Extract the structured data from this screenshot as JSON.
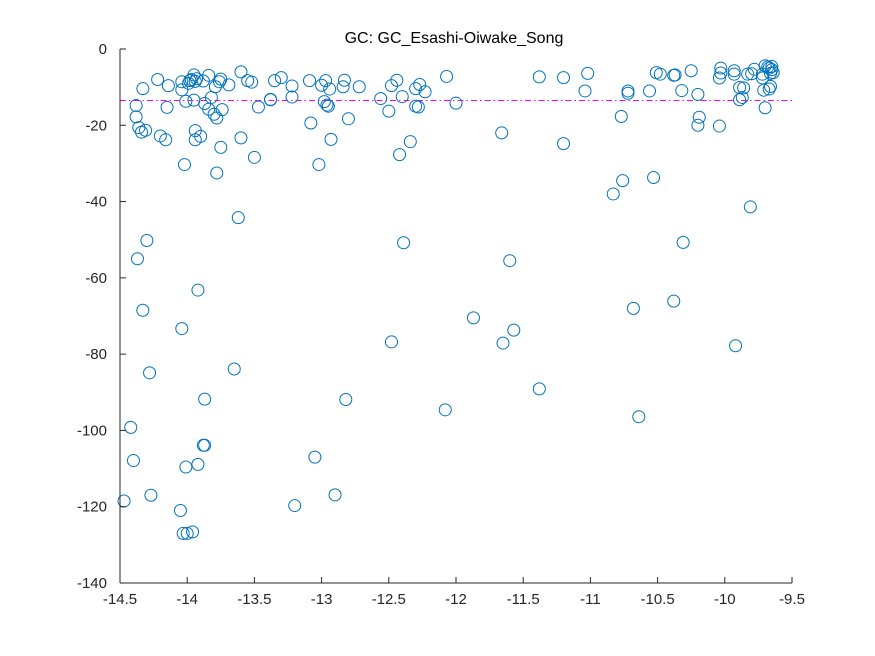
{
  "chart_data": {
    "type": "scatter",
    "title": "GC: GC_Esashi-Oiwake_Song",
    "xlabel": "",
    "ylabel": "",
    "xlim": [
      -14.5,
      -9.5
    ],
    "ylim": [
      -140,
      0
    ],
    "x_ticks": [
      -14.5,
      -14,
      -13.5,
      -13,
      -12.5,
      -12,
      -11.5,
      -11,
      -10.5,
      -10,
      -9.5
    ],
    "x_tick_labels": [
      "-14.5",
      "-14",
      "-13.5",
      "-13",
      "-12.5",
      "-12",
      "-11.5",
      "-11",
      "-10.5",
      "-10",
      "-9.5"
    ],
    "y_ticks": [
      0,
      -20,
      -40,
      -60,
      -80,
      -100,
      -120,
      -140
    ],
    "y_tick_labels": [
      "0",
      "-20",
      "-40",
      "-60",
      "-80",
      "-100",
      "-120",
      "-140"
    ],
    "grid": false,
    "marker_color": "#0072BD",
    "reference_line": {
      "y": -13.5,
      "color": "#FF00FF",
      "style": "dash-dot"
    },
    "series": [
      {
        "points": [
          [
            -14.47,
            -118.5
          ],
          [
            -14.42,
            -99.2
          ],
          [
            -14.4,
            -107.9
          ],
          [
            -14.38,
            -14.8
          ],
          [
            -14.38,
            -17.8
          ],
          [
            -14.37,
            -55.0
          ],
          [
            -14.36,
            -20.6
          ],
          [
            -14.34,
            -21.8
          ],
          [
            -14.33,
            -10.4
          ],
          [
            -14.33,
            -68.5
          ],
          [
            -14.31,
            -21.3
          ],
          [
            -14.3,
            -50.2
          ],
          [
            -14.28,
            -84.9
          ],
          [
            -14.27,
            -117.0
          ],
          [
            -14.22,
            -8.0
          ],
          [
            -14.2,
            -22.8
          ],
          [
            -14.16,
            -23.8
          ],
          [
            -14.15,
            -15.3
          ],
          [
            -14.14,
            -9.6
          ],
          [
            -14.05,
            -121.0
          ],
          [
            -14.04,
            -8.6
          ],
          [
            -14.04,
            -10.7
          ],
          [
            -14.04,
            -73.3
          ],
          [
            -14.03,
            -127.0
          ],
          [
            -14.02,
            -30.3
          ],
          [
            -14.01,
            -109.6
          ],
          [
            -14.01,
            -13.7
          ],
          [
            -14.0,
            -127.0
          ],
          [
            -13.99,
            -9.0
          ],
          [
            -13.98,
            -8.3
          ],
          [
            -13.97,
            -8.0
          ],
          [
            -13.96,
            -126.6
          ],
          [
            -13.95,
            -13.4
          ],
          [
            -13.95,
            -6.8
          ],
          [
            -13.94,
            -23.8
          ],
          [
            -13.94,
            -21.4
          ],
          [
            -13.94,
            -8.5
          ],
          [
            -13.93,
            -7.8
          ],
          [
            -13.92,
            -63.2
          ],
          [
            -13.92,
            -108.9
          ],
          [
            -13.9,
            -22.9
          ],
          [
            -13.88,
            -8.4
          ],
          [
            -13.88,
            -103.9
          ],
          [
            -13.87,
            -14.3
          ],
          [
            -13.87,
            -91.8
          ],
          [
            -13.87,
            -103.9
          ],
          [
            -13.84,
            -6.9
          ],
          [
            -13.84,
            -15.8
          ],
          [
            -13.82,
            -12.7
          ],
          [
            -13.8,
            -17.1
          ],
          [
            -13.79,
            -9.9
          ],
          [
            -13.78,
            -18.1
          ],
          [
            -13.78,
            -32.5
          ],
          [
            -13.76,
            -8.6
          ],
          [
            -13.75,
            -7.9
          ],
          [
            -13.75,
            -25.8
          ],
          [
            -13.74,
            -15.9
          ],
          [
            -13.69,
            -9.4
          ],
          [
            -13.65,
            -83.9
          ],
          [
            -13.62,
            -44.2
          ],
          [
            -13.6,
            -6.0
          ],
          [
            -13.6,
            -23.3
          ],
          [
            -13.55,
            -8.3
          ],
          [
            -13.52,
            -8.7
          ],
          [
            -13.5,
            -28.4
          ],
          [
            -13.47,
            -15.2
          ],
          [
            -13.38,
            -13.3
          ],
          [
            -13.38,
            -13.2
          ],
          [
            -13.35,
            -8.3
          ],
          [
            -13.3,
            -7.5
          ],
          [
            -13.22,
            -12.6
          ],
          [
            -13.22,
            -9.7
          ],
          [
            -13.2,
            -119.7
          ],
          [
            -13.09,
            -8.3
          ],
          [
            -13.08,
            -19.4
          ],
          [
            -13.05,
            -107.0
          ],
          [
            -13.02,
            -30.3
          ],
          [
            -13.0,
            -9.5
          ],
          [
            -12.98,
            -13.8
          ],
          [
            -12.97,
            -8.3
          ],
          [
            -12.96,
            -14.7
          ],
          [
            -12.95,
            -15.0
          ],
          [
            -12.94,
            -10.5
          ],
          [
            -12.93,
            -23.7
          ],
          [
            -12.9,
            -116.9
          ],
          [
            -12.84,
            -9.9
          ],
          [
            -12.83,
            -8.2
          ],
          [
            -12.82,
            -91.9
          ],
          [
            -12.8,
            -18.3
          ],
          [
            -12.72,
            -9.9
          ],
          [
            -12.56,
            -13.0
          ],
          [
            -12.5,
            -16.3
          ],
          [
            -12.48,
            -9.6
          ],
          [
            -12.48,
            -76.8
          ],
          [
            -12.44,
            -8.2
          ],
          [
            -12.42,
            -27.7
          ],
          [
            -12.4,
            -12.5
          ],
          [
            -12.39,
            -50.8
          ],
          [
            -12.34,
            -24.3
          ],
          [
            -12.3,
            -15.0
          ],
          [
            -12.3,
            -10.4
          ],
          [
            -12.28,
            -15.2
          ],
          [
            -12.27,
            -9.3
          ],
          [
            -12.23,
            -11.2
          ],
          [
            -12.07,
            -7.2
          ],
          [
            -12.08,
            -94.6
          ],
          [
            -12.0,
            -14.2
          ],
          [
            -11.87,
            -70.5
          ],
          [
            -11.66,
            -22.0
          ],
          [
            -11.65,
            -77.1
          ],
          [
            -11.6,
            -55.5
          ],
          [
            -11.57,
            -73.7
          ],
          [
            -11.38,
            -7.3
          ],
          [
            -11.38,
            -89.1
          ],
          [
            -11.2,
            -24.8
          ],
          [
            -11.2,
            -7.5
          ],
          [
            -11.04,
            -11.0
          ],
          [
            -11.02,
            -6.4
          ],
          [
            -10.83,
            -38.0
          ],
          [
            -10.77,
            -17.7
          ],
          [
            -10.76,
            -34.5
          ],
          [
            -10.72,
            -11.0
          ],
          [
            -10.72,
            -11.6
          ],
          [
            -10.68,
            -68.0
          ],
          [
            -10.64,
            -96.4
          ],
          [
            -10.56,
            -11.0
          ],
          [
            -10.53,
            -33.7
          ],
          [
            -10.51,
            -6.2
          ],
          [
            -10.48,
            -6.6
          ],
          [
            -10.38,
            -6.9
          ],
          [
            -10.38,
            -66.1
          ],
          [
            -10.37,
            -6.8
          ],
          [
            -10.32,
            -10.9
          ],
          [
            -10.31,
            -50.7
          ],
          [
            -10.25,
            -5.7
          ],
          [
            -10.2,
            -11.9
          ],
          [
            -10.2,
            -20.0
          ],
          [
            -10.19,
            -17.9
          ],
          [
            -10.04,
            -7.6
          ],
          [
            -10.04,
            -20.2
          ],
          [
            -10.03,
            -6.3
          ],
          [
            -10.03,
            -5.0
          ],
          [
            -9.92,
            -77.8
          ],
          [
            -9.93,
            -6.6
          ],
          [
            -9.93,
            -5.7
          ],
          [
            -9.89,
            -13.3
          ],
          [
            -9.89,
            -10.1
          ],
          [
            -9.87,
            -12.7
          ],
          [
            -9.86,
            -10.2
          ],
          [
            -9.83,
            -6.6
          ],
          [
            -9.81,
            -41.4
          ],
          [
            -9.8,
            -6.5
          ],
          [
            -9.78,
            -5.3
          ],
          [
            -9.72,
            -7.6
          ],
          [
            -9.72,
            -6.6
          ],
          [
            -9.71,
            -10.8
          ],
          [
            -9.7,
            -15.4
          ],
          [
            -9.7,
            -4.4
          ],
          [
            -9.68,
            -4.7
          ],
          [
            -9.67,
            -5.0
          ],
          [
            -9.67,
            -10.5
          ],
          [
            -9.66,
            -6.4
          ],
          [
            -9.66,
            -9.8
          ],
          [
            -9.65,
            -4.6
          ],
          [
            -9.65,
            -5.4
          ],
          [
            -9.64,
            -6.2
          ]
        ]
      }
    ]
  }
}
